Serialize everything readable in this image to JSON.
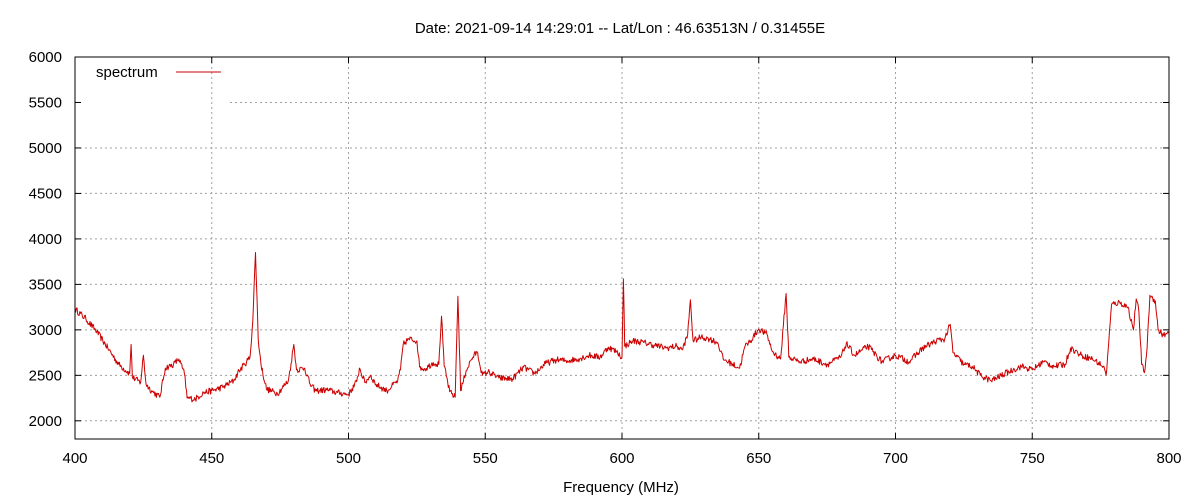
{
  "chart_data": {
    "type": "line",
    "title": "Date: 2021-09-14 14:29:01  --  Lat/Lon : 46.63513N / 0.31455E",
    "xlabel": "Frequency (MHz)",
    "ylabel": "",
    "xlim": [
      400,
      800
    ],
    "ylim": [
      1800,
      6000
    ],
    "x_ticks": [
      400,
      450,
      500,
      550,
      600,
      650,
      700,
      750,
      800
    ],
    "y_ticks": [
      2000,
      2500,
      3000,
      3500,
      4000,
      4500,
      5000,
      5500,
      6000
    ],
    "grid": true,
    "legend_position": "top-left",
    "series": [
      {
        "name": "spectrum",
        "color": "#cc0000",
        "points": [
          [
            400,
            3230
          ],
          [
            404,
            3120
          ],
          [
            408,
            2980
          ],
          [
            412,
            2800
          ],
          [
            416,
            2620
          ],
          [
            420,
            2520
          ],
          [
            420.5,
            2840
          ],
          [
            421,
            2480
          ],
          [
            424,
            2420
          ],
          [
            425,
            2720
          ],
          [
            426,
            2400
          ],
          [
            428,
            2330
          ],
          [
            431,
            2260
          ],
          [
            433,
            2580
          ],
          [
            436,
            2620
          ],
          [
            438,
            2680
          ],
          [
            440,
            2520
          ],
          [
            441,
            2250
          ],
          [
            444,
            2240
          ],
          [
            447,
            2310
          ],
          [
            450,
            2330
          ],
          [
            454,
            2370
          ],
          [
            458,
            2440
          ],
          [
            460,
            2550
          ],
          [
            462,
            2620
          ],
          [
            464,
            2700
          ],
          [
            465,
            3100
          ],
          [
            466,
            3850
          ],
          [
            467,
            2900
          ],
          [
            468,
            2620
          ],
          [
            470,
            2350
          ],
          [
            474,
            2300
          ],
          [
            478,
            2440
          ],
          [
            479,
            2630
          ],
          [
            480,
            2840
          ],
          [
            481,
            2560
          ],
          [
            484,
            2580
          ],
          [
            486,
            2400
          ],
          [
            488,
            2330
          ],
          [
            492,
            2340
          ],
          [
            496,
            2310
          ],
          [
            500,
            2290
          ],
          [
            503,
            2430
          ],
          [
            504,
            2580
          ],
          [
            506,
            2420
          ],
          [
            508,
            2500
          ],
          [
            510,
            2400
          ],
          [
            514,
            2330
          ],
          [
            518,
            2440
          ],
          [
            519,
            2560
          ],
          [
            520,
            2840
          ],
          [
            522,
            2900
          ],
          [
            525,
            2880
          ],
          [
            526,
            2590
          ],
          [
            528,
            2570
          ],
          [
            531,
            2640
          ],
          [
            533,
            2620
          ],
          [
            534,
            3150
          ],
          [
            535,
            2600
          ],
          [
            537,
            2320
          ],
          [
            539,
            2260
          ],
          [
            540,
            3370
          ],
          [
            541,
            2330
          ],
          [
            543,
            2550
          ],
          [
            545,
            2680
          ],
          [
            547,
            2760
          ],
          [
            549,
            2500
          ],
          [
            551,
            2540
          ],
          [
            555,
            2470
          ],
          [
            560,
            2460
          ],
          [
            564,
            2590
          ],
          [
            568,
            2520
          ],
          [
            572,
            2630
          ],
          [
            576,
            2670
          ],
          [
            580,
            2660
          ],
          [
            584,
            2680
          ],
          [
            588,
            2720
          ],
          [
            592,
            2700
          ],
          [
            595,
            2810
          ],
          [
            598,
            2760
          ],
          [
            600,
            2700
          ],
          [
            600.5,
            3560
          ],
          [
            601,
            2820
          ],
          [
            604,
            2880
          ],
          [
            608,
            2860
          ],
          [
            612,
            2830
          ],
          [
            616,
            2800
          ],
          [
            620,
            2820
          ],
          [
            622,
            2780
          ],
          [
            624,
            2940
          ],
          [
            625,
            3330
          ],
          [
            626,
            2880
          ],
          [
            629,
            2920
          ],
          [
            632,
            2900
          ],
          [
            635,
            2860
          ],
          [
            637,
            2680
          ],
          [
            640,
            2630
          ],
          [
            643,
            2580
          ],
          [
            645,
            2820
          ],
          [
            647,
            2880
          ],
          [
            650,
            3010
          ],
          [
            653,
            2950
          ],
          [
            655,
            2760
          ],
          [
            658,
            2680
          ],
          [
            660,
            3400
          ],
          [
            661,
            2700
          ],
          [
            665,
            2650
          ],
          [
            670,
            2680
          ],
          [
            675,
            2620
          ],
          [
            680,
            2700
          ],
          [
            682,
            2850
          ],
          [
            685,
            2720
          ],
          [
            690,
            2820
          ],
          [
            695,
            2650
          ],
          [
            700,
            2720
          ],
          [
            705,
            2650
          ],
          [
            710,
            2800
          ],
          [
            715,
            2880
          ],
          [
            718,
            2900
          ],
          [
            720,
            3060
          ],
          [
            721,
            2750
          ],
          [
            725,
            2620
          ],
          [
            728,
            2600
          ],
          [
            731,
            2500
          ],
          [
            735,
            2440
          ],
          [
            740,
            2520
          ],
          [
            743,
            2560
          ],
          [
            746,
            2600
          ],
          [
            750,
            2560
          ],
          [
            754,
            2650
          ],
          [
            758,
            2600
          ],
          [
            762,
            2620
          ],
          [
            764,
            2800
          ],
          [
            768,
            2720
          ],
          [
            772,
            2680
          ],
          [
            776,
            2600
          ],
          [
            777,
            2500
          ],
          [
            778,
            2870
          ],
          [
            779,
            3280
          ],
          [
            782,
            3300
          ],
          [
            785,
            3250
          ],
          [
            787,
            3000
          ],
          [
            788,
            3340
          ],
          [
            789,
            3200
          ],
          [
            790,
            2620
          ],
          [
            791,
            2530
          ],
          [
            792,
            2800
          ],
          [
            793,
            3380
          ],
          [
            795,
            3320
          ],
          [
            796,
            3000
          ],
          [
            798,
            2940
          ],
          [
            800,
            2960
          ]
        ]
      }
    ]
  }
}
